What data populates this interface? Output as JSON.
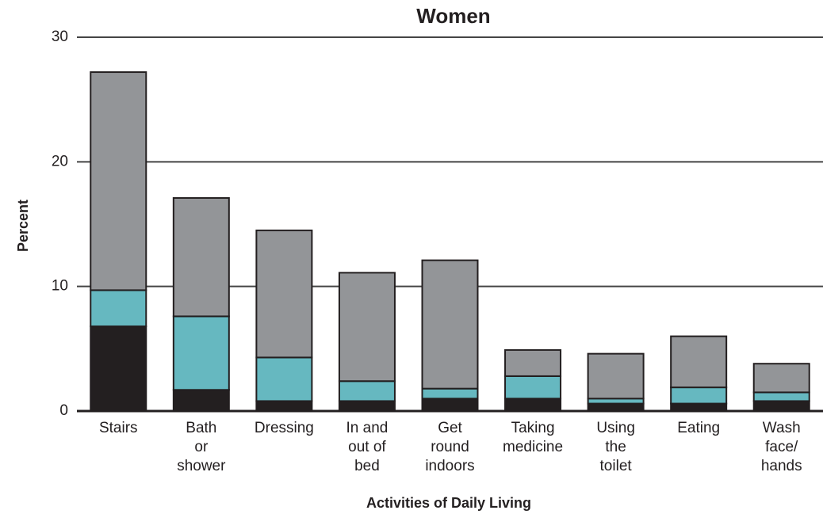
{
  "chart_data": {
    "type": "stacked_bar",
    "title": "Women",
    "xlabel": "Activities of Daily Living",
    "ylabel": "Percent",
    "categories": [
      "Stairs",
      "Bath\nor\nshower",
      "Dressing",
      "In and\nout of\nbed",
      "Get\nround\nindoors",
      "Taking\nmedicine",
      "Using\nthe\ntoilet",
      "Eating",
      "Wash\nface/\nhands"
    ],
    "series": [
      {
        "color": "#231f20",
        "values": [
          6.8,
          1.7,
          0.8,
          0.8,
          1.0,
          1.0,
          0.6,
          0.6,
          0.8
        ]
      },
      {
        "color": "#66b8c0",
        "values": [
          2.9,
          5.9,
          3.5,
          1.6,
          0.8,
          1.8,
          0.4,
          1.3,
          0.7
        ]
      },
      {
        "color": "#939598",
        "values": [
          17.5,
          9.5,
          10.2,
          8.7,
          10.3,
          2.1,
          3.6,
          4.1,
          2.3
        ]
      }
    ],
    "ylim": [
      0,
      30
    ],
    "yticks": [
      0,
      10,
      20,
      30
    ],
    "grid": true
  }
}
